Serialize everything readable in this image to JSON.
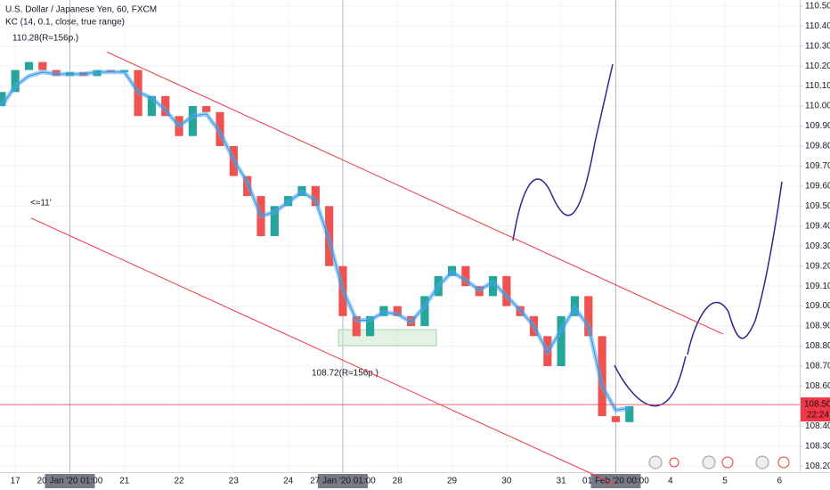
{
  "chart_data": {
    "type": "candlestick",
    "title": "U.S. Dollar / Japanese Yen, 60, FXCM",
    "indicator": "KC (14, 0.1, close, true range)",
    "annotations": [
      "110.28(R≈156p.)",
      "108.72(R≈156p.)",
      "<≈11'"
    ],
    "last_price": {
      "value": 108.508,
      "label": "108.508",
      "countdown": "22:24"
    },
    "up_color": "#26a69a",
    "down_color": "#ef5350",
    "kc_color": "#5aa9e6",
    "trend_color": "#f23645",
    "x": [
      -0.25,
      0,
      0.25,
      0.5,
      0.75,
      1,
      1.25,
      1.5,
      1.75,
      2,
      2.25,
      2.5,
      2.75,
      3,
      3.25,
      3.5,
      3.75,
      4,
      4.25,
      4.5,
      4.75,
      5,
      5.25,
      5.5,
      5.75,
      6,
      6.25,
      6.5,
      6.75,
      7,
      7.25,
      7.5,
      7.75,
      8,
      8.25,
      8.5,
      8.75,
      9,
      9.25,
      9.5,
      9.75,
      10,
      10.25,
      10.5,
      10.75,
      11,
      11.25
    ],
    "open": [
      110.0,
      110.07,
      110.18,
      110.22,
      110.18,
      110.15,
      110.17,
      110.15,
      110.18,
      110.17,
      110.18,
      109.95,
      110.05,
      109.95,
      109.85,
      110.0,
      109.97,
      109.8,
      109.65,
      109.55,
      109.35,
      109.5,
      109.55,
      109.6,
      109.5,
      109.2,
      108.95,
      108.85,
      108.95,
      109.0,
      108.95,
      108.9,
      109.05,
      109.15,
      109.2,
      109.1,
      109.05,
      109.15,
      109.0,
      108.95,
      108.85,
      108.7,
      108.95,
      109.05,
      108.85,
      108.45,
      108.42
    ],
    "close": [
      110.07,
      110.18,
      110.22,
      110.18,
      110.15,
      110.17,
      110.15,
      110.18,
      110.17,
      110.18,
      109.95,
      110.05,
      109.95,
      109.85,
      110.0,
      109.97,
      109.8,
      109.65,
      109.55,
      109.35,
      109.5,
      109.55,
      109.6,
      109.5,
      109.2,
      108.95,
      108.85,
      108.95,
      109.0,
      108.95,
      108.9,
      109.05,
      109.15,
      109.2,
      109.1,
      109.05,
      109.15,
      109.0,
      108.95,
      108.85,
      108.7,
      108.95,
      109.05,
      108.85,
      108.45,
      108.42,
      108.5
    ],
    "kc": [
      110.0,
      110.1,
      110.15,
      110.17,
      110.16,
      110.16,
      110.16,
      110.17,
      110.17,
      110.17,
      110.07,
      110.04,
      109.98,
      109.9,
      109.95,
      109.96,
      109.87,
      109.73,
      109.62,
      109.45,
      109.47,
      109.52,
      109.57,
      109.53,
      109.33,
      109.08,
      108.93,
      108.93,
      108.97,
      108.96,
      108.92,
      109.0,
      109.1,
      109.17,
      109.13,
      109.08,
      109.12,
      109.05,
      108.98,
      108.9,
      108.77,
      108.88,
      108.99,
      108.9,
      108.6,
      108.48,
      108.49
    ],
    "trend_lines": [
      {
        "x": [
          1.68,
          12.97
        ],
        "y": [
          110.27,
          108.86
        ]
      },
      {
        "x": [
          0.29,
          10.98
        ],
        "y": [
          109.44,
          108.11
        ]
      }
    ],
    "xlim": [
      -0.28,
      14.37
    ],
    "xticks": [
      {
        "value": 0,
        "label": "17"
      },
      {
        "value": 1,
        "label": "20 Jan '20   01:00"
      },
      {
        "value": 2,
        "label": "21"
      },
      {
        "value": 3,
        "label": "22"
      },
      {
        "value": 4,
        "label": "23"
      },
      {
        "value": 5,
        "label": "24"
      },
      {
        "value": 6,
        "label": "27 Jan '20   01:00"
      },
      {
        "value": 7,
        "label": "28"
      },
      {
        "value": 8,
        "label": "29"
      },
      {
        "value": 9,
        "label": "30"
      },
      {
        "value": 10,
        "label": "31"
      },
      {
        "value": 11,
        "label": "01 Feb '20   00:00"
      },
      {
        "value": 12,
        "label": "4"
      },
      {
        "value": 13,
        "label": "5"
      },
      {
        "value": 14,
        "label": "6"
      }
    ],
    "ylim": [
      108.17,
      110.53
    ],
    "yticks": [
      {
        "value": 110.5,
        "label": "110.50"
      },
      {
        "value": 110.4,
        "label": "110.40"
      },
      {
        "value": 110.3,
        "label": "110.30"
      },
      {
        "value": 110.2,
        "label": "110.20"
      },
      {
        "value": 110.1,
        "label": "110.10"
      },
      {
        "value": 110.0,
        "label": "110.000"
      },
      {
        "value": 109.9,
        "label": "109.900"
      },
      {
        "value": 109.8,
        "label": "109.800"
      },
      {
        "value": 109.7,
        "label": "109.700"
      },
      {
        "value": 109.6,
        "label": "109.600"
      },
      {
        "value": 109.5,
        "label": "109.500"
      },
      {
        "value": 109.4,
        "label": "109.400"
      },
      {
        "value": 109.3,
        "label": "109.300"
      },
      {
        "value": 109.2,
        "label": "109.200"
      },
      {
        "value": 109.1,
        "label": "109.100"
      },
      {
        "value": 109.0,
        "label": "109.000"
      },
      {
        "value": 108.9,
        "label": "108.900"
      },
      {
        "value": 108.8,
        "label": "108.800"
      },
      {
        "value": 108.7,
        "label": "108.700"
      },
      {
        "value": 108.6,
        "label": "108.600"
      },
      {
        "value": 108.4,
        "label": "108.400"
      },
      {
        "value": 108.3,
        "label": "108.300"
      },
      {
        "value": 108.2,
        "label": "108.200"
      }
    ]
  }
}
